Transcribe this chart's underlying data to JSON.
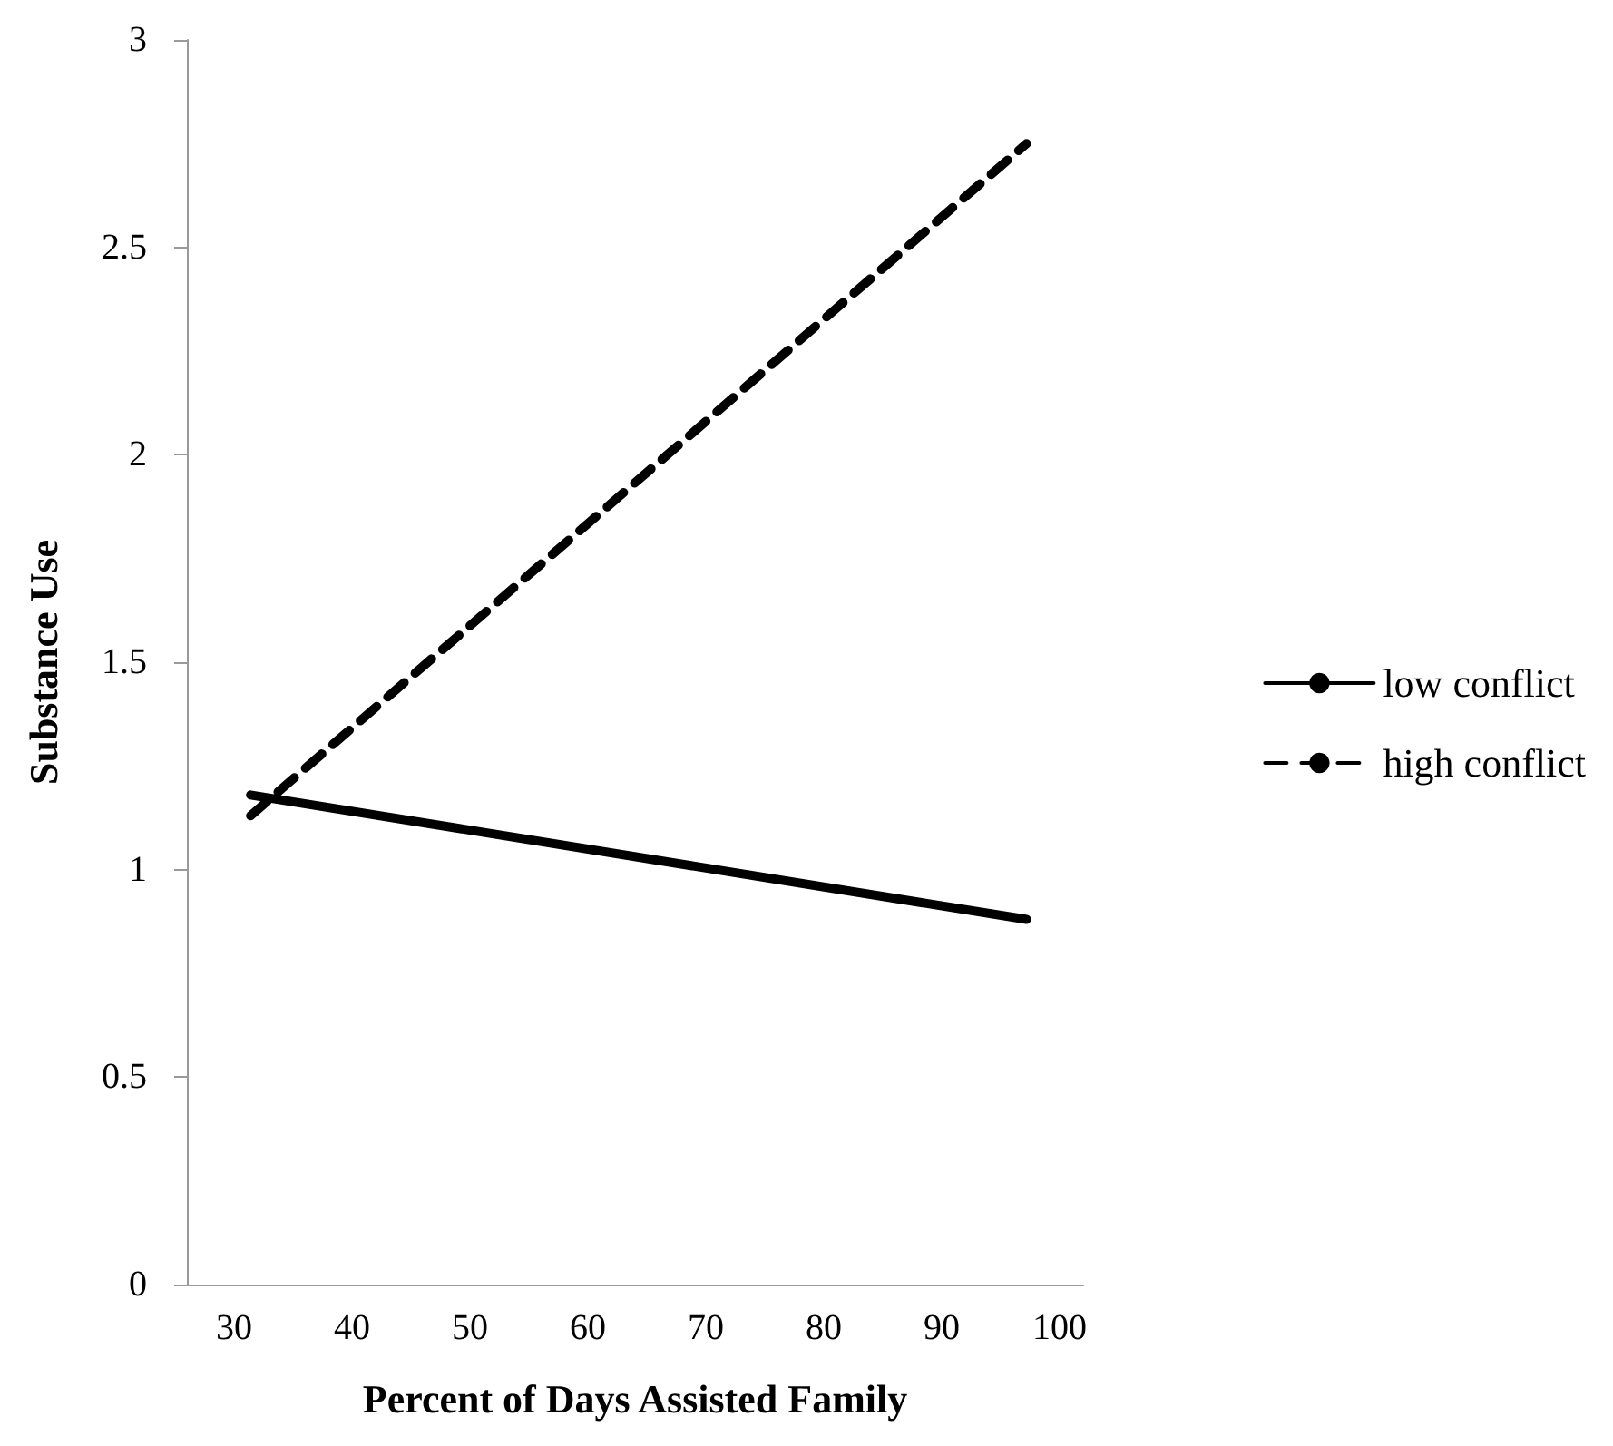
{
  "chart_data": {
    "type": "line",
    "xlabel": "Percent of Days Assisted Family",
    "ylabel": "Substance Use",
    "x": [
      31.4,
      97.2
    ],
    "series": [
      {
        "name": "low conflict",
        "color": "#000000",
        "values": [
          1.18,
          0.88
        ],
        "line_style": "solid"
      },
      {
        "name": "high conflict",
        "color": "#000000",
        "values": [
          1.13,
          2.75
        ],
        "line_style": "dashed"
      }
    ],
    "xlim": [
      26,
      102
    ],
    "xticks": [
      30,
      40,
      50,
      60,
      70,
      80,
      90,
      100
    ],
    "ylim": [
      0,
      3
    ],
    "yticks": [
      0,
      0.5,
      1,
      1.5,
      2,
      2.5,
      3
    ],
    "grid": false,
    "legend": "right",
    "marker": "none"
  }
}
